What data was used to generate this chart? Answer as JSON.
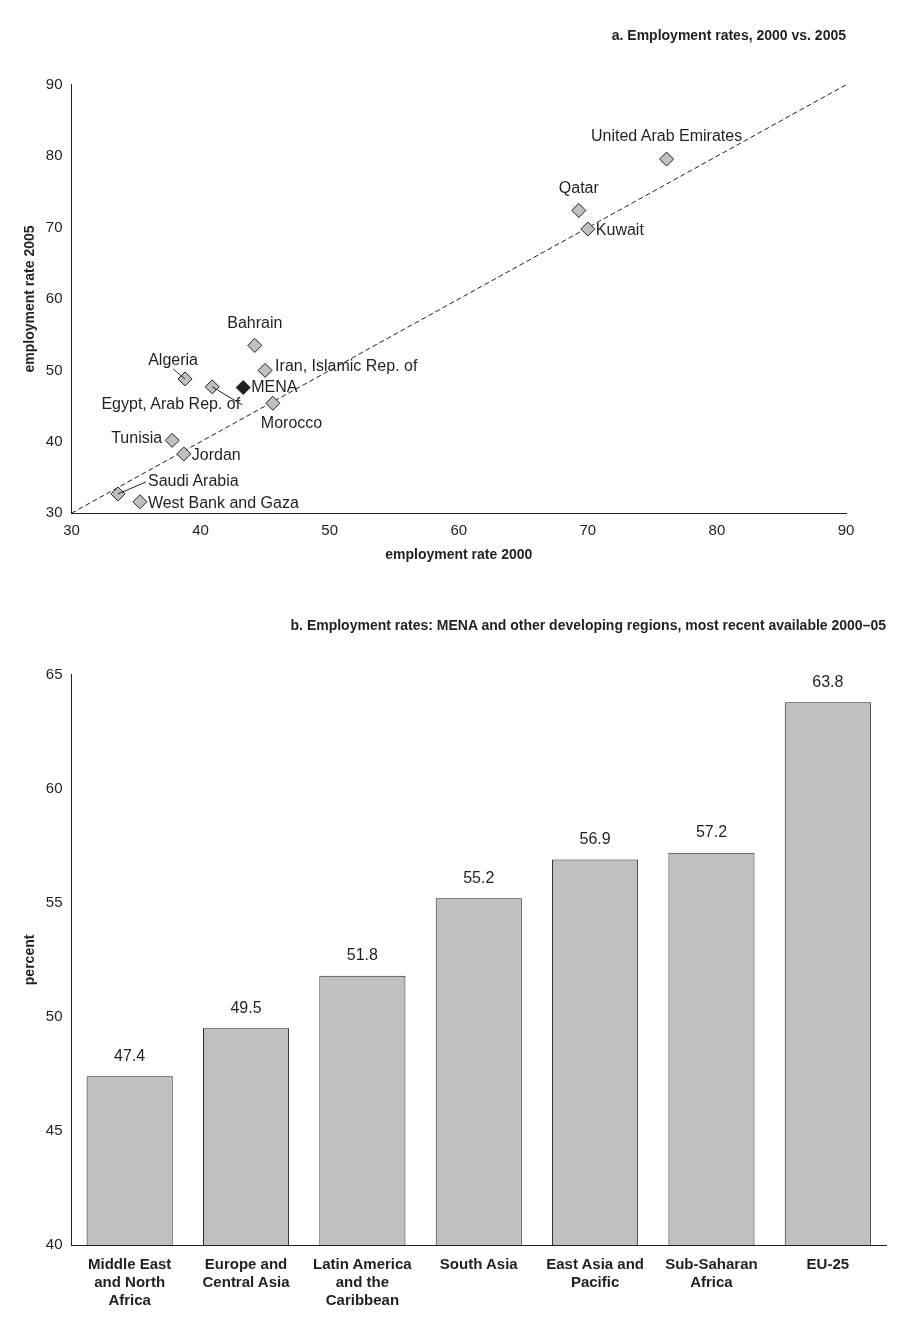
{
  "chart_data": [
    {
      "type": "scatter",
      "title": "a. Employment rates, 2000 vs. 2005",
      "xlabel": "employment rate 2000",
      "ylabel": "employment rate 2005",
      "xlim": [
        30,
        90
      ],
      "xticks": [
        30,
        40,
        50,
        60,
        70,
        80,
        90
      ],
      "ylim": [
        30,
        90
      ],
      "yticks": [
        30,
        40,
        50,
        60,
        70,
        80,
        90
      ],
      "grid": false,
      "legend": false,
      "marker": "diamond",
      "series": [
        {
          "type": "scatter",
          "x": [
            76.1,
            69.3,
            70.0,
            44.2,
            45.0,
            38.8,
            40.9,
            43.3,
            45.6,
            37.8,
            38.7,
            33.6,
            35.3
          ],
          "values": [
            79.6,
            72.4,
            69.8,
            53.5,
            50.0,
            48.8,
            47.7,
            47.6,
            45.4,
            40.2,
            38.3,
            32.7,
            31.6
          ],
          "colors": [
            "#c0c0c0",
            "#c0c0c0",
            "#c0c0c0",
            "#c0c0c0",
            "#c0c0c0",
            "#c0c0c0",
            "#c0c0c0",
            "#231f20",
            "#c0c0c0",
            "#c0c0c0",
            "#c0c0c0",
            "#c0c0c0",
            "#c0c0c0"
          ]
        },
        {
          "type": "line",
          "x": [
            30,
            90
          ],
          "values": [
            30,
            90
          ],
          "color": "#231f20",
          "line_style": "dashed",
          "marker": "none"
        }
      ],
      "annotations": [
        {
          "text": "United Arab Emirates",
          "x": 76.1,
          "y": 79.6
        },
        {
          "text": "Qatar",
          "x": 69.3,
          "y": 72.4
        },
        {
          "text": "Kuwait",
          "x": 70.0,
          "y": 69.8
        },
        {
          "text": "Bahrain",
          "x": 44.2,
          "y": 53.5
        },
        {
          "text": "Iran, Islamic Rep. of",
          "x": 45.0,
          "y": 50.0
        },
        {
          "text": "Algeria",
          "x": 38.8,
          "y": 48.8
        },
        {
          "text": "Egypt, Arab Rep. of",
          "x": 40.9,
          "y": 47.7
        },
        {
          "text": "MENA",
          "x": 43.3,
          "y": 47.6
        },
        {
          "text": "Morocco",
          "x": 45.6,
          "y": 45.4
        },
        {
          "text": "Tunisia",
          "x": 37.8,
          "y": 40.2
        },
        {
          "text": "Jordan",
          "x": 38.7,
          "y": 38.3
        },
        {
          "text": "Saudi Arabia",
          "x": 33.6,
          "y": 32.7
        },
        {
          "text": "West Bank and Gaza",
          "x": 35.3,
          "y": 31.6
        }
      ]
    },
    {
      "type": "bar",
      "title": "b. Employment rates: MENA and other developing regions, most recent available 2000–05",
      "ylabel": "percent",
      "categories": [
        "Middle East and North Africa",
        "Europe and Central Asia",
        "Latin America and the Caribbean",
        "South Asia",
        "East Asia and Pacific",
        "Sub-Saharan Africa",
        "EU-25"
      ],
      "values": [
        47.4,
        49.5,
        51.8,
        55.2,
        56.9,
        57.2,
        63.8
      ],
      "color": "#c0c0c0",
      "ylim": [
        40,
        65
      ],
      "yticks": [
        40,
        45,
        50,
        55,
        60,
        65
      ],
      "grid": false,
      "legend": false,
      "data_labels": true
    }
  ]
}
